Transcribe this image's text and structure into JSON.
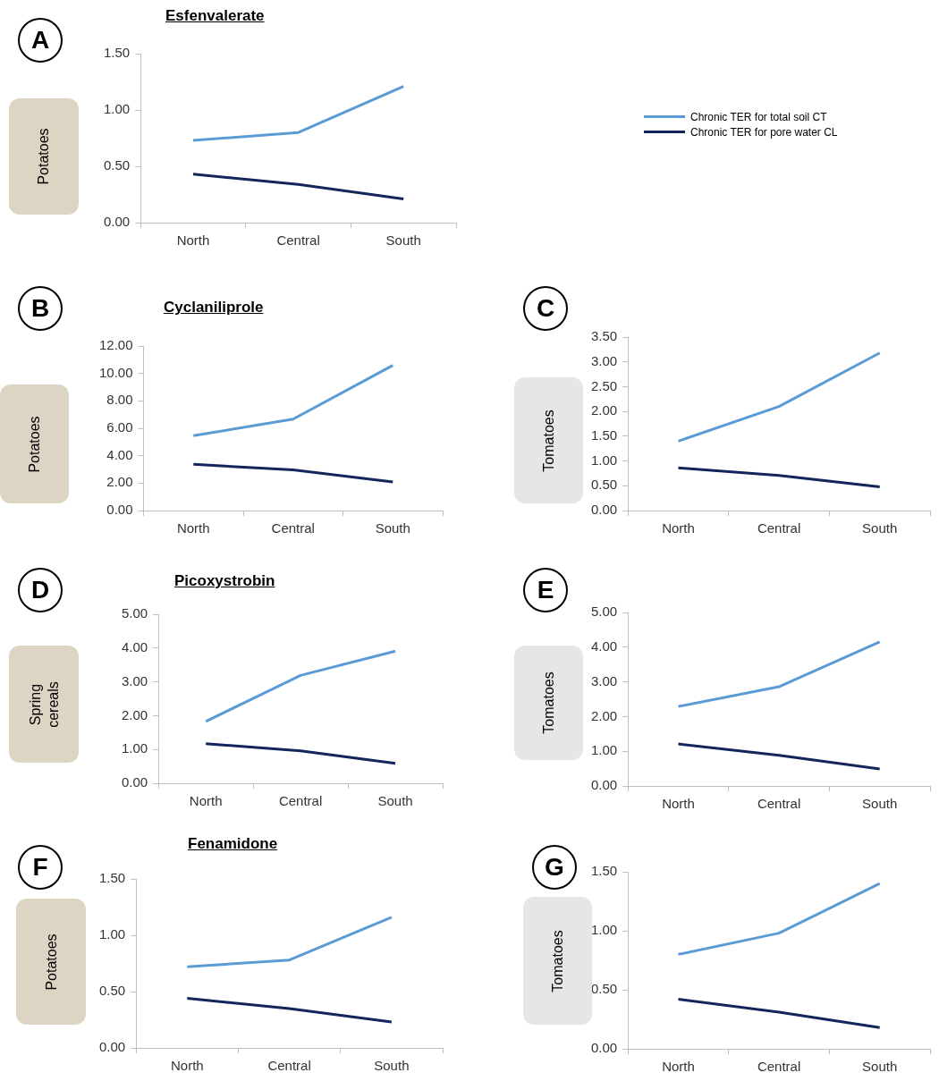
{
  "chart_data": [
    {
      "type": "line",
      "title": "Esfenvalerate",
      "ylabel": "Potatoes",
      "annotations": [
        "A"
      ],
      "categories": [
        "North",
        "Central",
        "South"
      ],
      "legend": "right",
      "series": [
        {
          "name": "Chronic TER for total soil CT",
          "color": "#5b9bd5",
          "values": [
            0.73,
            0.8,
            1.21
          ]
        },
        {
          "name": "Chronic TER for pore water CL",
          "color": "#13255a",
          "values": [
            0.43,
            0.34,
            0.21
          ]
        }
      ],
      "ylim": [
        0,
        1.5
      ],
      "yticks": [
        {
          "value": 0,
          "label": "0.00"
        },
        {
          "value": 0.5,
          "label": "0.50"
        },
        {
          "value": 1,
          "label": "1.00"
        },
        {
          "value": 1.5,
          "label": "1.50"
        }
      ]
    },
    {
      "type": "line",
      "title": "Cyclaniliprole",
      "ylabel": "Potatoes",
      "annotations": [
        "B"
      ],
      "categories": [
        "North",
        "Central",
        "South"
      ],
      "series": [
        {
          "color": "#5b9bd5",
          "values": [
            5.46,
            6.67,
            10.59
          ]
        },
        {
          "color": "#13255a",
          "values": [
            3.37,
            2.97,
            2.09
          ]
        }
      ],
      "ylim": [
        0,
        12
      ],
      "yticks": [
        {
          "value": 0,
          "label": "0.00"
        },
        {
          "value": 2,
          "label": "2.00"
        },
        {
          "value": 4,
          "label": "4.00"
        },
        {
          "value": 6,
          "label": "6.00"
        },
        {
          "value": 8,
          "label": "8.00"
        },
        {
          "value": 10,
          "label": "10.00"
        },
        {
          "value": 12,
          "label": "12.00"
        }
      ]
    },
    {
      "type": "line",
      "ylabel": "Tomatoes",
      "annotations": [
        "C"
      ],
      "categories": [
        "North",
        "Central",
        "South"
      ],
      "series": [
        {
          "color": "#5b9bd5",
          "values": [
            1.4,
            2.1,
            3.18
          ]
        },
        {
          "color": "#13255a",
          "values": [
            0.86,
            0.71,
            0.48
          ]
        }
      ],
      "ylim": [
        0,
        3.5
      ],
      "yticks": [
        {
          "value": 0,
          "label": "0.00"
        },
        {
          "value": 0.5,
          "label": "0.50"
        },
        {
          "value": 1,
          "label": "1.00"
        },
        {
          "value": 1.5,
          "label": "1.50"
        },
        {
          "value": 2,
          "label": "2.00"
        },
        {
          "value": 2.5,
          "label": "2.50"
        },
        {
          "value": 3,
          "label": "3.00"
        },
        {
          "value": 3.5,
          "label": "3.50"
        }
      ]
    },
    {
      "type": "line",
      "title": "Picoxystrobin",
      "ylabel": "Spring cereals",
      "annotations": [
        "D"
      ],
      "categories": [
        "North",
        "Central",
        "South"
      ],
      "series": [
        {
          "color": "#5b9bd5",
          "values": [
            1.83,
            3.19,
            3.91
          ]
        },
        {
          "color": "#13255a",
          "values": [
            1.17,
            0.96,
            0.59
          ]
        }
      ],
      "ylim": [
        0,
        5
      ],
      "yticks": [
        {
          "value": 0,
          "label": "0.00"
        },
        {
          "value": 1,
          "label": "1.00"
        },
        {
          "value": 2,
          "label": "2.00"
        },
        {
          "value": 3,
          "label": "3.00"
        },
        {
          "value": 4,
          "label": "4.00"
        },
        {
          "value": 5,
          "label": "5.00"
        }
      ]
    },
    {
      "type": "line",
      "ylabel": "Tomatoes",
      "annotations": [
        "E"
      ],
      "categories": [
        "North",
        "Central",
        "South"
      ],
      "series": [
        {
          "color": "#5b9bd5",
          "values": [
            2.29,
            2.86,
            4.15
          ]
        },
        {
          "color": "#13255a",
          "values": [
            1.21,
            0.88,
            0.49
          ]
        }
      ],
      "ylim": [
        0,
        5
      ],
      "yticks": [
        {
          "value": 0,
          "label": "0.00"
        },
        {
          "value": 1,
          "label": "1.00"
        },
        {
          "value": 2,
          "label": "2.00"
        },
        {
          "value": 3,
          "label": "3.00"
        },
        {
          "value": 4,
          "label": "4.00"
        },
        {
          "value": 5,
          "label": "5.00"
        }
      ]
    },
    {
      "type": "line",
      "title": "Fenamidone",
      "ylabel": "Potatoes",
      "annotations": [
        "F"
      ],
      "categories": [
        "North",
        "Central",
        "South"
      ],
      "series": [
        {
          "color": "#5b9bd5",
          "values": [
            0.72,
            0.78,
            1.16
          ]
        },
        {
          "color": "#13255a",
          "values": [
            0.44,
            0.35,
            0.23
          ]
        }
      ],
      "ylim": [
        0,
        1.5
      ],
      "yticks": [
        {
          "value": 0,
          "label": "0.00"
        },
        {
          "value": 0.5,
          "label": "0.50"
        },
        {
          "value": 1,
          "label": "1.00"
        },
        {
          "value": 1.5,
          "label": "1.50"
        }
      ]
    },
    {
      "type": "line",
      "ylabel": "Tomatoes",
      "annotations": [
        "G"
      ],
      "categories": [
        "North",
        "Central",
        "South"
      ],
      "series": [
        {
          "color": "#5b9bd5",
          "values": [
            0.8,
            0.98,
            1.4
          ]
        },
        {
          "color": "#13255a",
          "values": [
            0.42,
            0.31,
            0.18
          ]
        }
      ],
      "ylim": [
        0,
        1.5
      ],
      "yticks": [
        {
          "value": 0,
          "label": "0.00"
        },
        {
          "value": 0.5,
          "label": "0.50"
        },
        {
          "value": 1,
          "label": "1.00"
        },
        {
          "value": 1.5,
          "label": "1.50"
        }
      ]
    }
  ]
}
